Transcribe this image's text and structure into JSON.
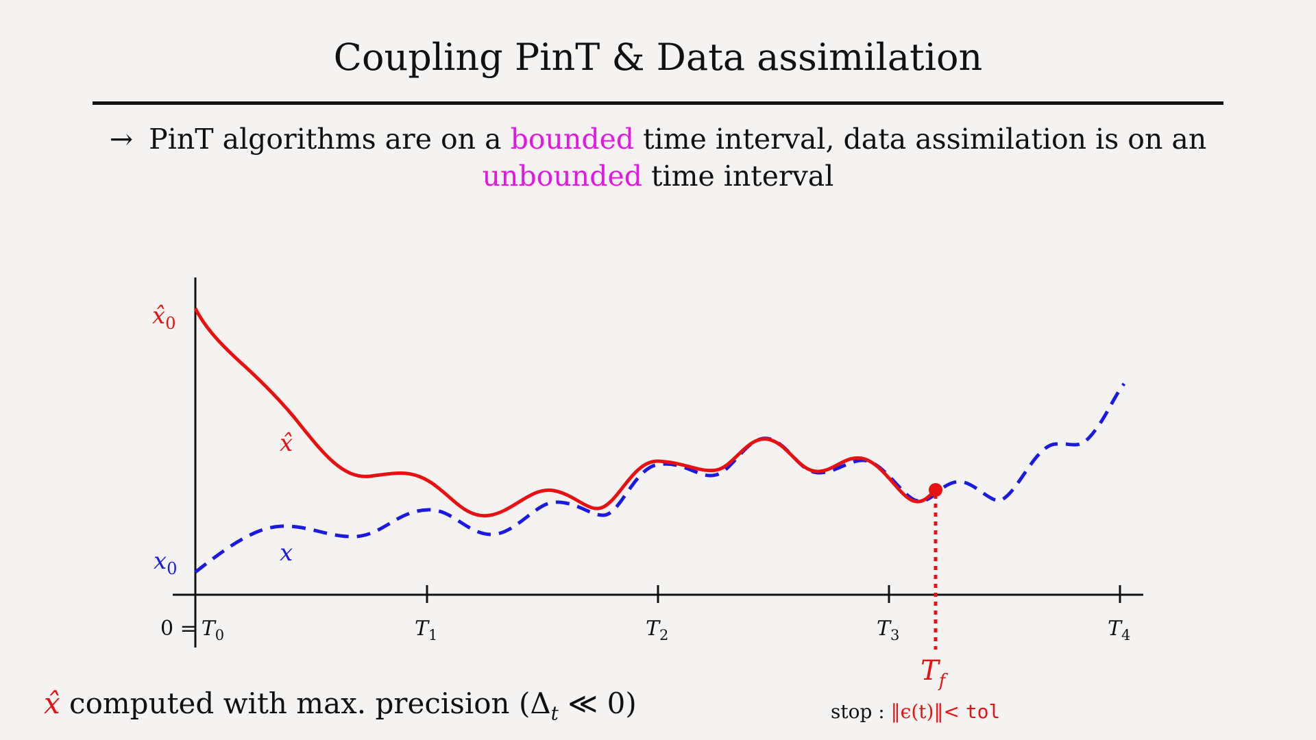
{
  "slide": {
    "title": "Coupling PinT & Data assimilation",
    "subtitle": {
      "arrow": "→",
      "part1": "PinT algorithms are on a",
      "highlight1": "bounded",
      "part2": "time interval, data assimilation is on an",
      "highlight2": "unbounded",
      "part3": "time interval"
    },
    "note": {
      "symbol": "x̂",
      "text": "computed with max. precision (Δ",
      "subscript": "t",
      "text_end": "≪ 0)"
    },
    "stop": {
      "label": "stop :",
      "condition": "‖ϵ(t)‖<",
      "tol": "tol"
    }
  },
  "diagram": {
    "colors": {
      "xhat": "#e81010",
      "x": "#1a1ae0",
      "axis": "#111111",
      "highlight": "#e316e3"
    },
    "labels": {
      "xhat0": "x̂",
      "xhat0_sub": "0",
      "x0": "x",
      "x0_sub": "0",
      "xhat_curve": "x̂",
      "x_curve": "x",
      "t0_prefix": "0 =",
      "t0": "T",
      "t0_sub": "0",
      "tf": "T",
      "tf_sub": "f"
    },
    "ticks": [
      {
        "name": "T",
        "sub": "1"
      },
      {
        "name": "T",
        "sub": "2"
      },
      {
        "name": "T",
        "sub": "3"
      },
      {
        "name": "T",
        "sub": "4"
      }
    ]
  }
}
